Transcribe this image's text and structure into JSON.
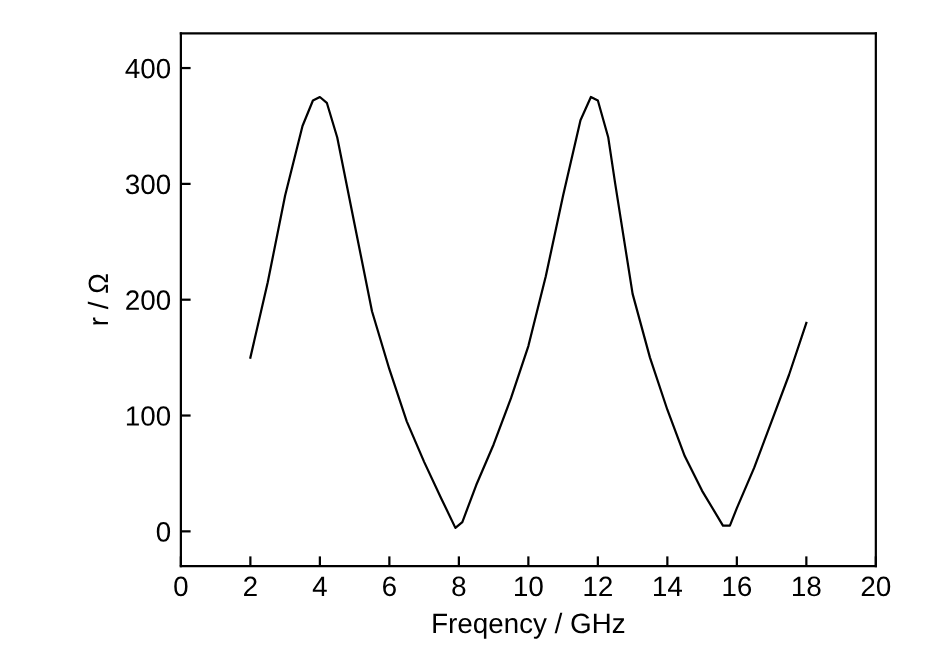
{
  "chart_data": {
    "type": "line",
    "xlabel": "Freqency / GHz",
    "ylabel": "r / Ω",
    "xlim": [
      0,
      20
    ],
    "xticks": [
      0,
      2,
      4,
      6,
      8,
      10,
      12,
      14,
      16,
      18,
      20
    ],
    "ylim": [
      -30,
      430
    ],
    "yticks": [
      0,
      100,
      200,
      300,
      400
    ],
    "grid": false,
    "series": [
      {
        "color": "#000000",
        "x": [
          2,
          2.5,
          3,
          3.5,
          3.8,
          4,
          4.2,
          4.5,
          5,
          5.5,
          6,
          6.5,
          7,
          7.5,
          7.9,
          8.1,
          8.5,
          9,
          9.5,
          10,
          10.5,
          11,
          11.5,
          11.8,
          12,
          12.3,
          12.5,
          13,
          13.5,
          14,
          14.5,
          15,
          15.6,
          15.8,
          16,
          16.5,
          17,
          17.5,
          18
        ],
        "values": [
          150,
          215,
          290,
          350,
          372,
          375,
          370,
          340,
          265,
          190,
          140,
          95,
          60,
          28,
          3,
          8,
          40,
          75,
          115,
          160,
          220,
          290,
          355,
          375,
          372,
          340,
          300,
          205,
          150,
          105,
          65,
          35,
          5,
          5,
          20,
          55,
          95,
          135,
          180
        ]
      }
    ]
  }
}
